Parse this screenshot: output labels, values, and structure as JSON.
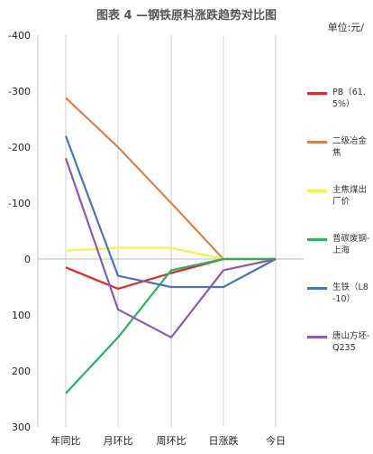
{
  "chart_data": {
    "type": "line",
    "title": "图表 4 —钢铁原料涨跌趋势对比图",
    "unit_label": "单位:元/",
    "categories": [
      "年同比",
      "月环比",
      "周环比",
      "日涨跌",
      "今日"
    ],
    "ylim": [
      -400,
      300
    ],
    "y_inverted": true,
    "yticks": [
      -400,
      -300,
      -200,
      -100,
      0,
      100,
      200,
      300
    ],
    "ytick_labels": [
      "-400",
      "-300",
      "-200",
      "-100",
      "0",
      "100",
      "200",
      "300"
    ],
    "grid": "vertical-lines-at-categories",
    "legend_position": "right",
    "series": [
      {
        "name": "PB（61.5%）",
        "color": "#e8262a",
        "values": [
          15,
          53,
          25,
          0,
          0
        ]
      },
      {
        "name": "二级冶金焦",
        "color": "#d9834a",
        "values": [
          -288,
          -200,
          -100,
          0,
          0
        ]
      },
      {
        "name": "主焦煤出厂价",
        "color": "#f4f442",
        "values": [
          -15,
          -20,
          -20,
          0,
          0
        ]
      },
      {
        "name": "普碳废钢-上海",
        "color": "#27b35f",
        "values": [
          240,
          140,
          20,
          0,
          0
        ]
      },
      {
        "name": "生铁（L8-10）",
        "color": "#4f73b7",
        "values": [
          -220,
          30,
          50,
          50,
          0
        ]
      },
      {
        "name": "唐山方坯-Q235",
        "color": "#8a5bb2",
        "values": [
          -180,
          90,
          140,
          20,
          0
        ]
      }
    ]
  }
}
